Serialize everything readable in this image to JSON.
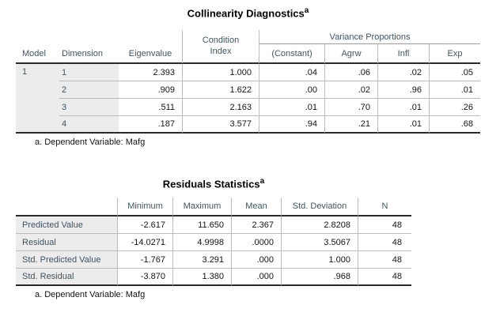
{
  "colors": {
    "header_text": "#3e5463",
    "data_text": "#141414",
    "label_bg": "#ececec",
    "grid_line": "#bcbcbc",
    "spanner_line": "#9c9c9c",
    "strong_line": "#2b2b2b",
    "title_text": "#000000"
  },
  "collinearity_table": {
    "title": "Collinearity Diagnostics",
    "title_footnote_marker": "a",
    "spanner_label": "Variance Proportions",
    "headers": {
      "model": "Model",
      "dimension": "Dimension",
      "eigenvalue": "Eigenvalue",
      "condition_index": "Condition Index",
      "constant": "(Constant)",
      "agrw": "Agrw",
      "infl": "Infl",
      "exp": "Exp"
    },
    "model_value": "1",
    "rows": [
      {
        "dimension": "1",
        "eigenvalue": "2.393",
        "condition_index": "1.000",
        "constant": ".04",
        "agrw": ".06",
        "infl": ".02",
        "exp": ".05"
      },
      {
        "dimension": "2",
        "eigenvalue": ".909",
        "condition_index": "1.622",
        "constant": ".00",
        "agrw": ".02",
        "infl": ".96",
        "exp": ".01"
      },
      {
        "dimension": "3",
        "eigenvalue": ".511",
        "condition_index": "2.163",
        "constant": ".01",
        "agrw": ".70",
        "infl": ".01",
        "exp": ".26"
      },
      {
        "dimension": "4",
        "eigenvalue": ".187",
        "condition_index": "3.577",
        "constant": ".94",
        "agrw": ".21",
        "infl": ".01",
        "exp": ".68"
      }
    ],
    "footnote": "a. Dependent Variable: Mafg"
  },
  "residuals_table": {
    "title": "Residuals Statistics",
    "title_footnote_marker": "a",
    "headers": {
      "minimum": "Minimum",
      "maximum": "Maximum",
      "mean": "Mean",
      "std_deviation": "Std. Deviation",
      "n": "N"
    },
    "rows": [
      {
        "label": "Predicted Value",
        "minimum": "-2.617",
        "maximum": "11.650",
        "mean": "2.367",
        "std_deviation": "2.8208",
        "n": "48"
      },
      {
        "label": "Residual",
        "minimum": "-14.0271",
        "maximum": "4.9998",
        "mean": ".0000",
        "std_deviation": "3.5067",
        "n": "48"
      },
      {
        "label": "Std. Predicted Value",
        "minimum": "-1.767",
        "maximum": "3.291",
        "mean": ".000",
        "std_deviation": "1.000",
        "n": "48"
      },
      {
        "label": "Std. Residual",
        "minimum": "-3.870",
        "maximum": "1.380",
        "mean": ".000",
        "std_deviation": ".968",
        "n": "48"
      }
    ],
    "footnote": "a. Dependent Variable: Mafg"
  }
}
